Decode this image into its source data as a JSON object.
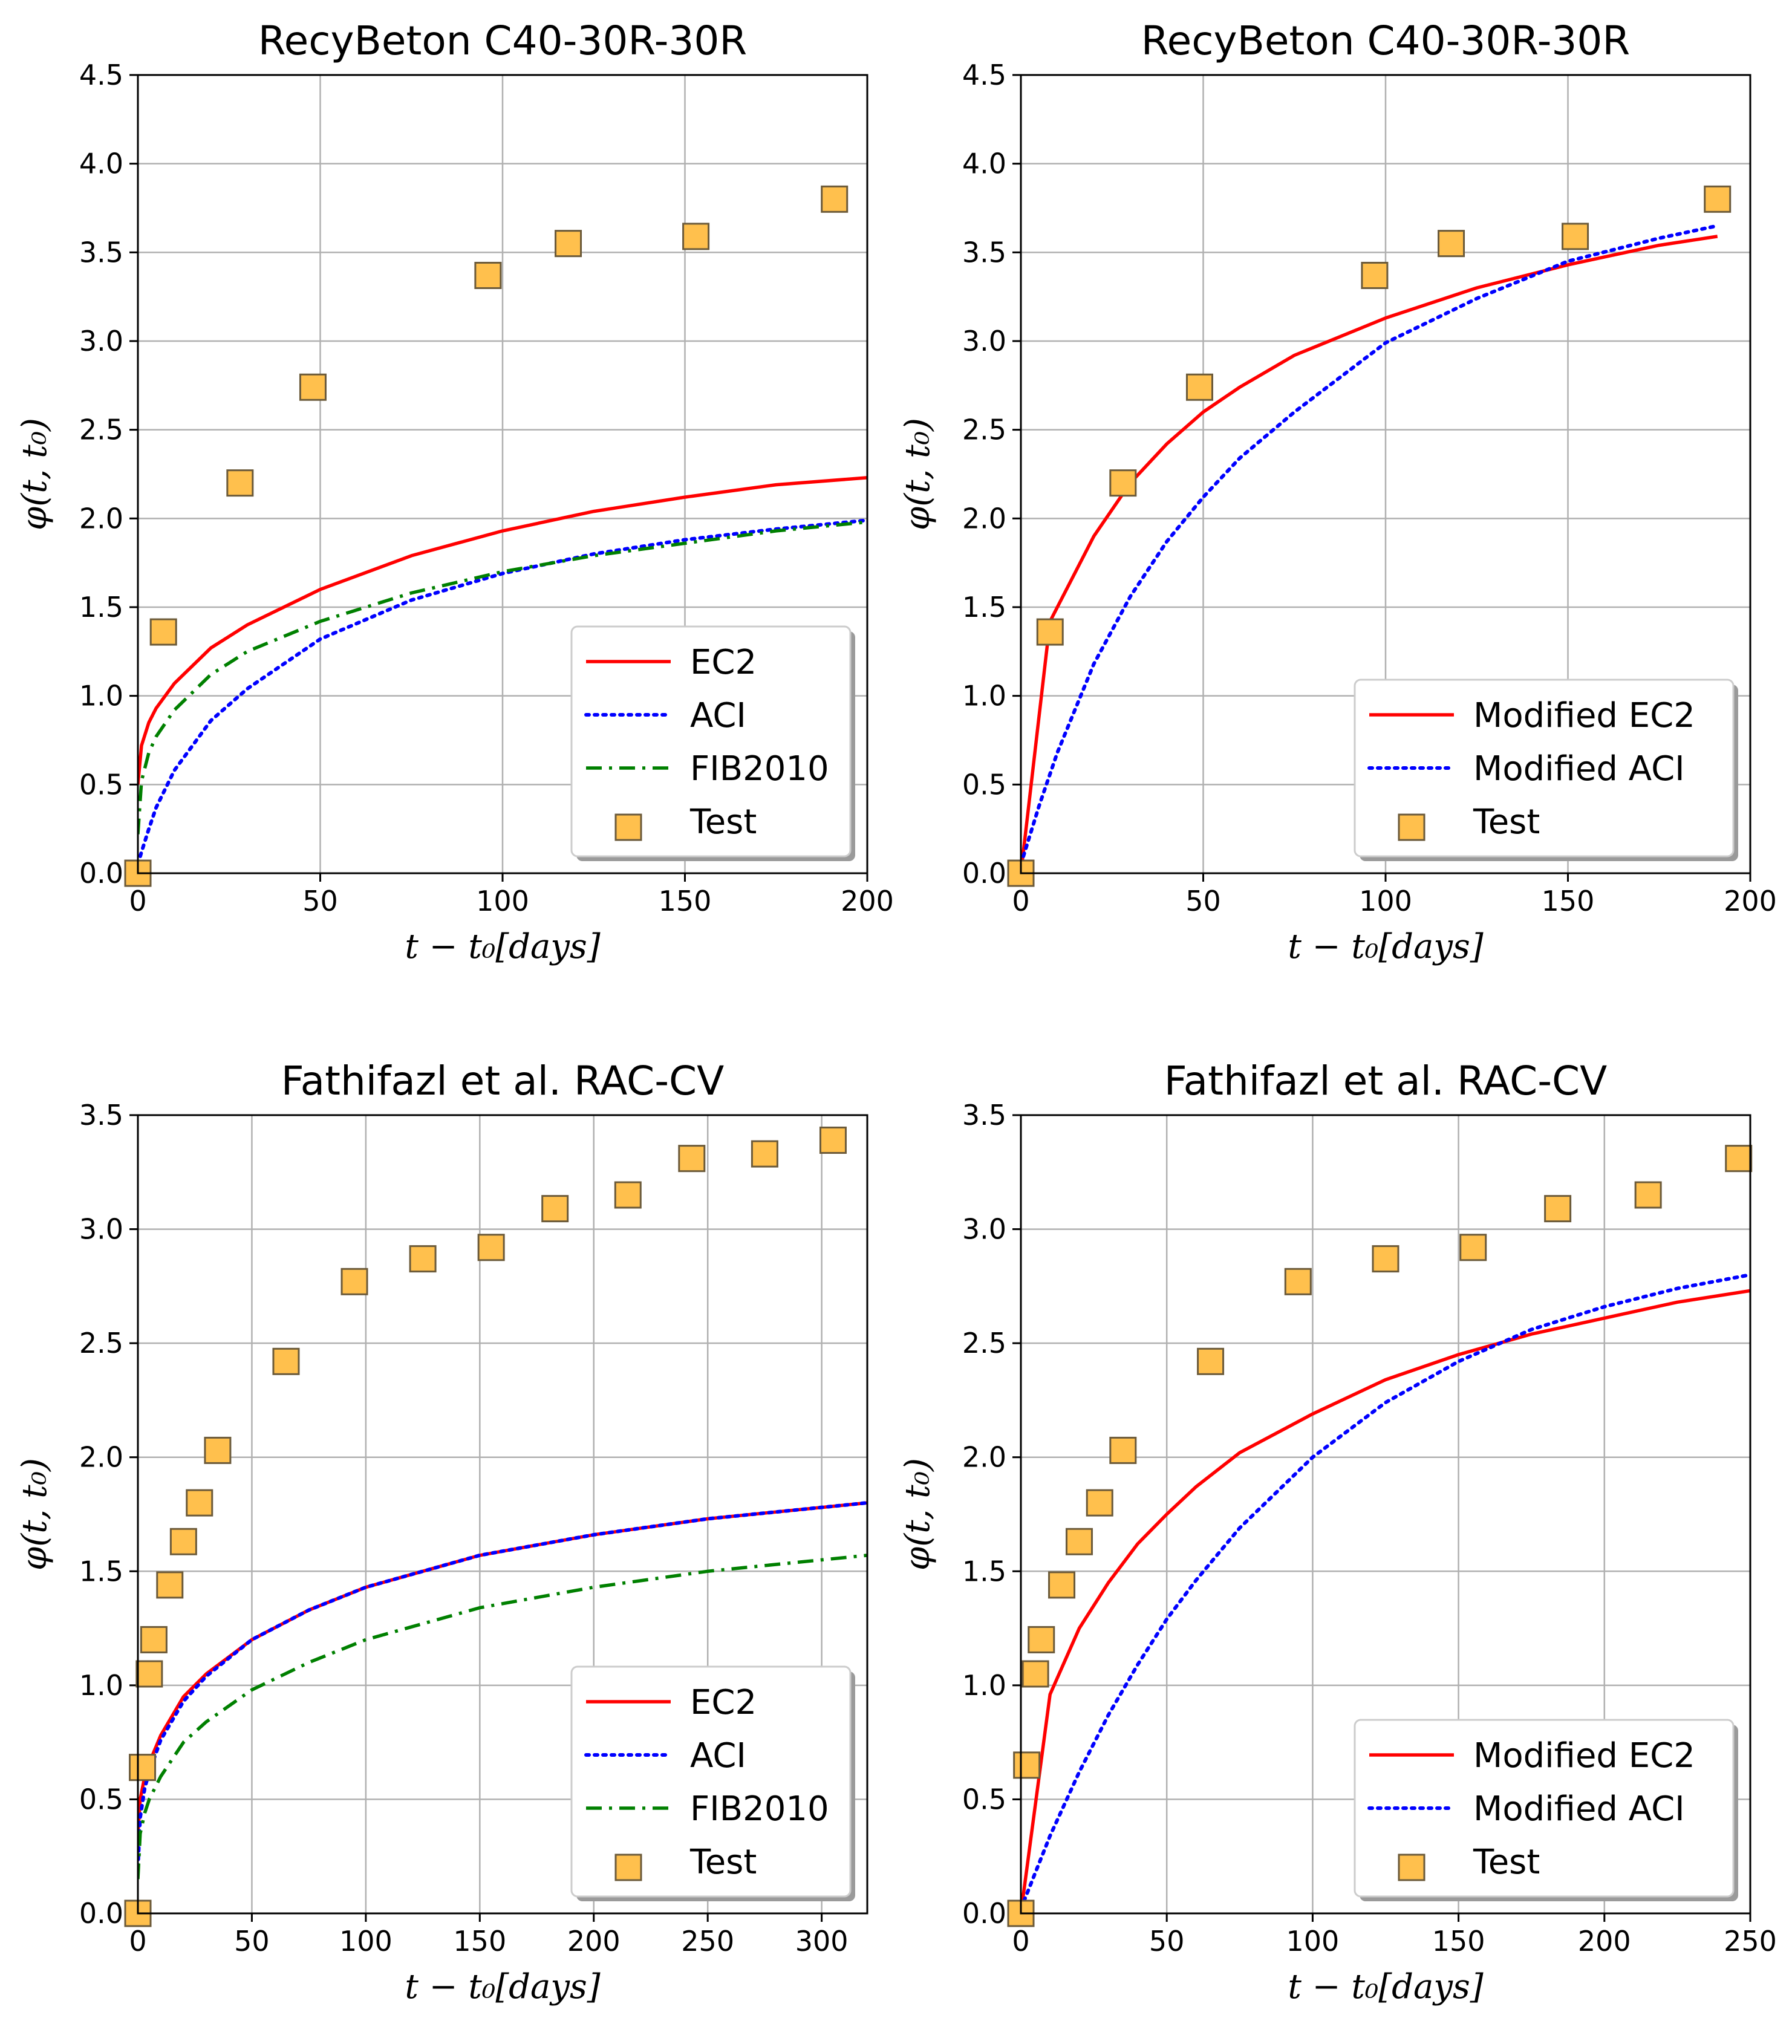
{
  "chart_data": [
    {
      "type": "line",
      "title": "RecyBeton C40-30R-30R",
      "xlabel": "t − t₀[days]",
      "ylabel": "φ(t, t₀)",
      "xlim": [
        0,
        200
      ],
      "ylim": [
        0,
        4.5
      ],
      "xticks": [
        0,
        50,
        100,
        150,
        200
      ],
      "yticks": [
        0.0,
        0.5,
        1.0,
        1.5,
        2.0,
        2.5,
        3.0,
        3.5,
        4.0,
        4.5
      ],
      "grid": true,
      "legend_position": "lower-right",
      "series": [
        {
          "name": "EC2",
          "style": "solid",
          "color": "#ff0000",
          "x": [
            0,
            1,
            3,
            5,
            10,
            20,
            30,
            50,
            75,
            100,
            125,
            150,
            175,
            200
          ],
          "y": [
            0.5,
            0.72,
            0.85,
            0.93,
            1.07,
            1.27,
            1.4,
            1.6,
            1.79,
            1.93,
            2.04,
            2.12,
            2.19,
            2.23
          ]
        },
        {
          "name": "ACI",
          "style": "dotted",
          "color": "#0000ff",
          "x": [
            0,
            1,
            3,
            5,
            10,
            20,
            30,
            50,
            75,
            100,
            125,
            150,
            175,
            200
          ],
          "y": [
            0.05,
            0.12,
            0.25,
            0.37,
            0.58,
            0.86,
            1.04,
            1.32,
            1.54,
            1.69,
            1.8,
            1.88,
            1.94,
            1.99
          ]
        },
        {
          "name": "FIB2010",
          "style": "dashdot",
          "color": "#008000",
          "x": [
            0,
            1,
            3,
            5,
            10,
            20,
            30,
            50,
            75,
            100,
            125,
            150,
            175,
            200
          ],
          "y": [
            0.22,
            0.52,
            0.68,
            0.77,
            0.92,
            1.12,
            1.25,
            1.42,
            1.58,
            1.7,
            1.79,
            1.86,
            1.93,
            1.98
          ]
        },
        {
          "name": "Test",
          "style": "marker",
          "color": "#ffc04d",
          "x": [
            0,
            7,
            28,
            48,
            96,
            118,
            153,
            191
          ],
          "y": [
            0.0,
            1.36,
            2.2,
            2.74,
            3.37,
            3.55,
            3.59,
            3.8
          ]
        }
      ]
    },
    {
      "type": "line",
      "title": "RecyBeton C40-30R-30R",
      "xlabel": "t − t₀[days]",
      "ylabel": "φ(t, t₀)",
      "xlim": [
        0,
        200
      ],
      "ylim": [
        0,
        4.5
      ],
      "xticks": [
        0,
        50,
        100,
        150,
        200
      ],
      "yticks": [
        0.0,
        0.5,
        1.0,
        1.5,
        2.0,
        2.5,
        3.0,
        3.5,
        4.0,
        4.5
      ],
      "grid": true,
      "legend_position": "lower-right",
      "series": [
        {
          "name": "Modified EC2",
          "style": "solid",
          "color": "#ff0000",
          "x": [
            0,
            8,
            20,
            30,
            40,
            50,
            60,
            75,
            100,
            125,
            150,
            175,
            191
          ],
          "y": [
            0.0,
            1.42,
            1.9,
            2.2,
            2.42,
            2.6,
            2.74,
            2.92,
            3.13,
            3.3,
            3.43,
            3.54,
            3.59
          ]
        },
        {
          "name": "Modified ACI",
          "style": "dotted",
          "color": "#0000ff",
          "x": [
            0,
            5,
            10,
            20,
            30,
            40,
            50,
            60,
            75,
            100,
            125,
            150,
            175,
            191
          ],
          "y": [
            0.05,
            0.38,
            0.68,
            1.18,
            1.56,
            1.87,
            2.12,
            2.34,
            2.6,
            2.99,
            3.24,
            3.45,
            3.58,
            3.65
          ]
        },
        {
          "name": "Test",
          "style": "marker",
          "color": "#ffc04d",
          "x": [
            0,
            8,
            28,
            49,
            97,
            118,
            152,
            191
          ],
          "y": [
            0.0,
            1.36,
            2.2,
            2.74,
            3.37,
            3.55,
            3.59,
            3.8
          ]
        }
      ]
    },
    {
      "type": "line",
      "title": "Fathifazl et al.  RAC-CV",
      "xlabel": "t − t₀[days]",
      "ylabel": "φ(t, t₀)",
      "xlim": [
        0,
        320
      ],
      "ylim": [
        0,
        3.5
      ],
      "xticks": [
        0,
        50,
        100,
        150,
        200,
        250,
        300
      ],
      "yticks": [
        0.0,
        0.5,
        1.0,
        1.5,
        2.0,
        2.5,
        3.0,
        3.5
      ],
      "grid": true,
      "legend_position": "lower-right",
      "series": [
        {
          "name": "EC2",
          "style": "solid",
          "color": "#ff0000",
          "x": [
            0,
            1,
            3,
            5,
            10,
            20,
            30,
            50,
            75,
            100,
            150,
            200,
            250,
            320
          ],
          "y": [
            0.35,
            0.5,
            0.6,
            0.66,
            0.78,
            0.95,
            1.05,
            1.2,
            1.33,
            1.43,
            1.57,
            1.66,
            1.73,
            1.8
          ]
        },
        {
          "name": "ACI",
          "style": "dotted",
          "color": "#0000ff",
          "x": [
            0,
            1,
            3,
            5,
            10,
            20,
            30,
            50,
            75,
            100,
            150,
            200,
            250,
            320
          ],
          "y": [
            0.2,
            0.42,
            0.55,
            0.62,
            0.76,
            0.93,
            1.04,
            1.2,
            1.33,
            1.43,
            1.57,
            1.66,
            1.73,
            1.8
          ]
        },
        {
          "name": "FIB2010",
          "style": "dashdot",
          "color": "#008000",
          "x": [
            0,
            1,
            3,
            5,
            10,
            20,
            30,
            50,
            75,
            100,
            150,
            200,
            250,
            320
          ],
          "y": [
            0.15,
            0.35,
            0.44,
            0.5,
            0.6,
            0.75,
            0.84,
            0.98,
            1.1,
            1.2,
            1.34,
            1.43,
            1.5,
            1.57
          ]
        },
        {
          "name": "Test",
          "style": "marker",
          "color": "#ffc04d",
          "x": [
            0,
            2,
            5,
            7,
            14,
            20,
            27,
            35,
            65,
            95,
            125,
            155,
            183,
            215,
            243,
            275,
            305
          ],
          "y": [
            0.0,
            0.64,
            1.05,
            1.2,
            1.44,
            1.63,
            1.8,
            2.03,
            2.42,
            2.77,
            2.87,
            2.92,
            3.09,
            3.15,
            3.31,
            3.33,
            3.39
          ]
        }
      ]
    },
    {
      "type": "line",
      "title": "Fathifazl et al.  RAC-CV",
      "xlabel": "t − t₀[days]",
      "ylabel": "φ(t, t₀)",
      "xlim": [
        0,
        250
      ],
      "ylim": [
        0,
        3.5
      ],
      "xticks": [
        0,
        50,
        100,
        150,
        200,
        250
      ],
      "yticks": [
        0.0,
        0.5,
        1.0,
        1.5,
        2.0,
        2.5,
        3.0,
        3.5
      ],
      "grid": true,
      "legend_position": "lower-right",
      "series": [
        {
          "name": "Modified EC2",
          "style": "solid",
          "color": "#ff0000",
          "x": [
            0,
            10,
            20,
            30,
            40,
            50,
            60,
            75,
            100,
            125,
            150,
            175,
            200,
            225,
            250
          ],
          "y": [
            0.0,
            0.96,
            1.25,
            1.45,
            1.62,
            1.75,
            1.87,
            2.02,
            2.19,
            2.34,
            2.45,
            2.54,
            2.61,
            2.68,
            2.73
          ]
        },
        {
          "name": "Modified ACI",
          "style": "dotted",
          "color": "#0000ff",
          "x": [
            0,
            5,
            10,
            20,
            30,
            40,
            50,
            60,
            75,
            100,
            125,
            150,
            175,
            200,
            225,
            250
          ],
          "y": [
            0.02,
            0.18,
            0.34,
            0.62,
            0.87,
            1.09,
            1.29,
            1.46,
            1.69,
            2.0,
            2.24,
            2.42,
            2.56,
            2.66,
            2.74,
            2.8
          ]
        },
        {
          "name": "Test",
          "style": "marker",
          "color": "#ffc04d",
          "x": [
            0,
            2,
            5,
            7,
            14,
            20,
            27,
            35,
            65,
            95,
            125,
            155,
            184,
            215,
            246
          ],
          "y": [
            0.0,
            0.65,
            1.05,
            1.2,
            1.44,
            1.63,
            1.8,
            2.03,
            2.42,
            2.77,
            2.87,
            2.92,
            3.09,
            3.15,
            3.31
          ]
        }
      ]
    }
  ]
}
